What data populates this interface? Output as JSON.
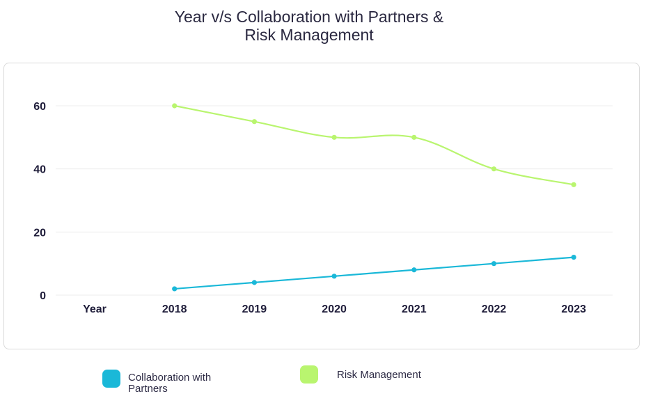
{
  "chart_data": {
    "type": "line",
    "title_lines": [
      "Year v/s Collaboration with Partners &",
      "Risk Management"
    ],
    "categories": [
      "Year",
      "2018",
      "2019",
      "2020",
      "2021",
      "2022",
      "2023"
    ],
    "y_ticks": [
      0,
      20,
      40,
      60
    ],
    "ylim": [
      0,
      60
    ],
    "grid": true,
    "legend_position": "bottom",
    "series": [
      {
        "name": "Collaboration with Partners",
        "color": "#1ab8d8",
        "values": [
          null,
          2,
          4,
          6,
          8,
          10,
          12
        ]
      },
      {
        "name": "Risk Management",
        "color": "#b9f56f",
        "values": [
          null,
          60,
          55,
          50,
          50,
          40,
          35
        ]
      }
    ]
  }
}
